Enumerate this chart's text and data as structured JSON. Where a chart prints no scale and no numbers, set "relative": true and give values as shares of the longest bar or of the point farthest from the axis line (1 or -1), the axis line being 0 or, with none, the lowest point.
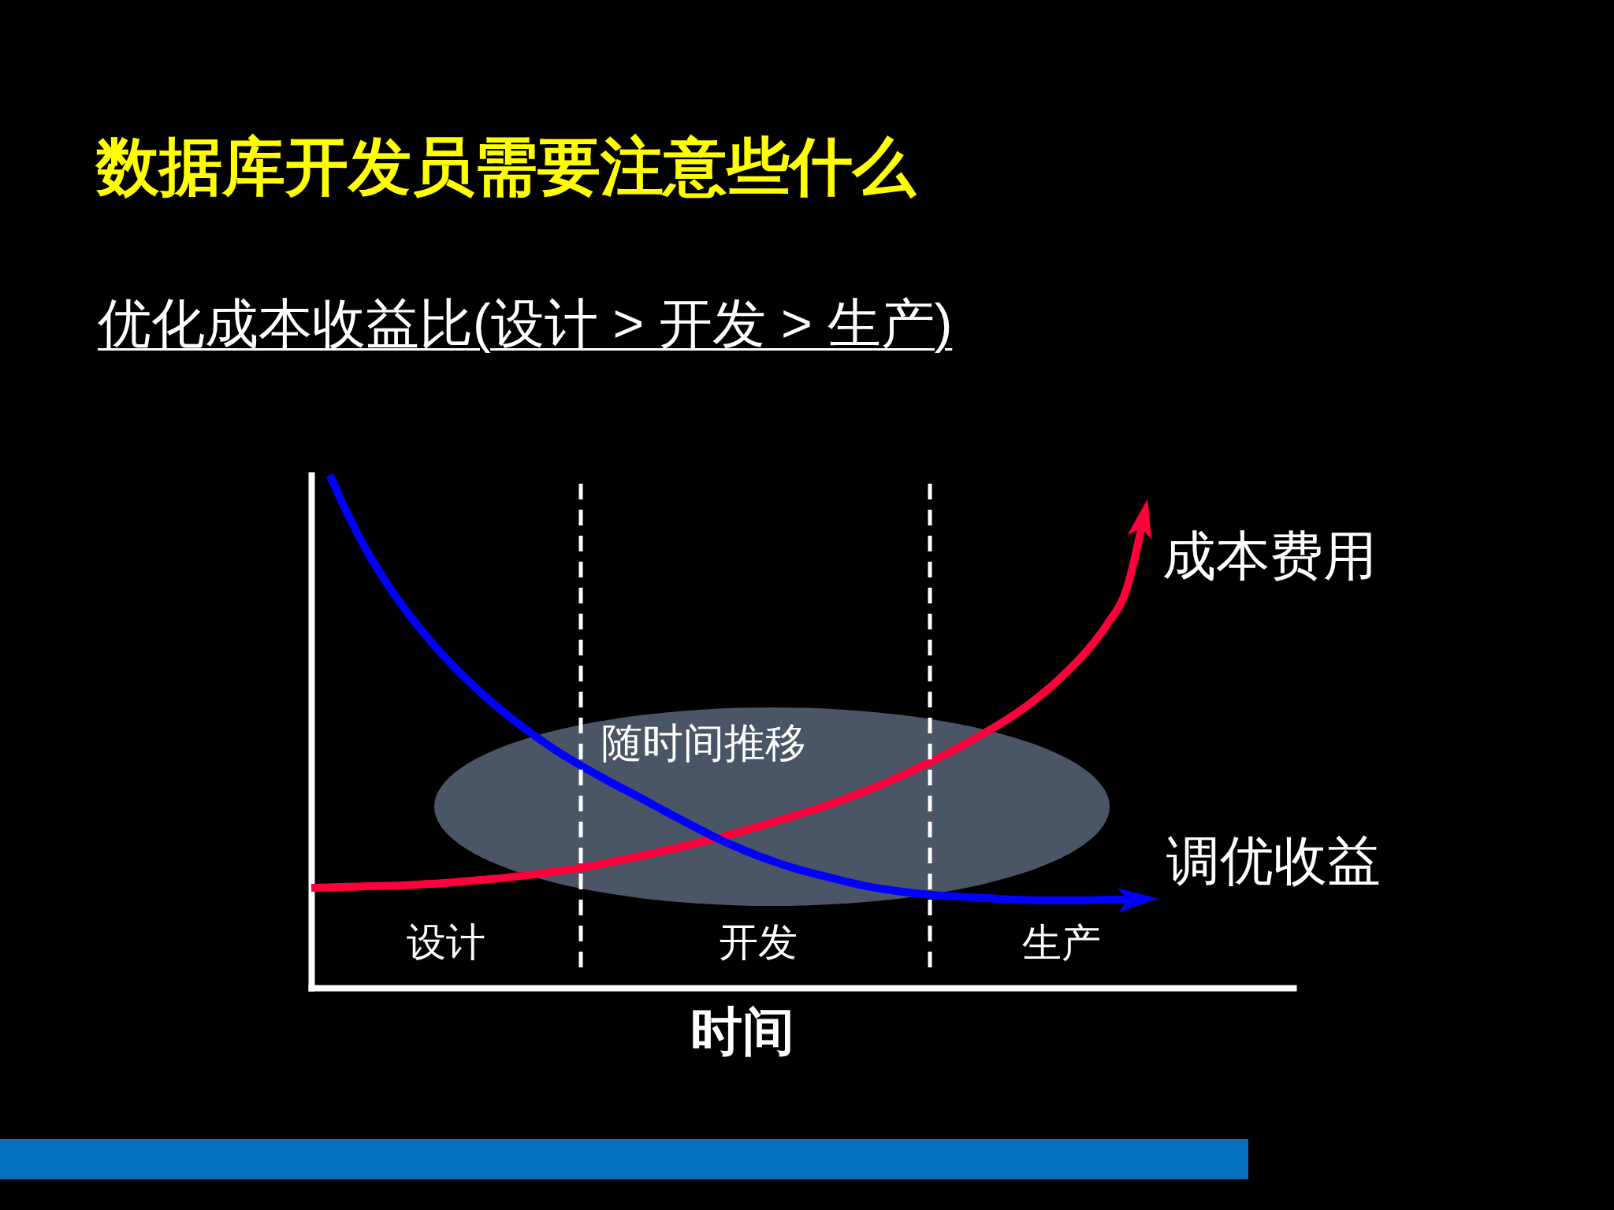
{
  "chart_data": {
    "type": "line",
    "title": "数据库开发员需要注意些什么",
    "subtitle": "优化成本收益比(设计 > 开发 > 生产)",
    "xlabel": "时间",
    "relative": true,
    "categories": [
      null,
      null,
      null,
      null,
      null,
      null,
      null,
      null,
      null,
      null,
      null,
      null,
      null,
      null,
      null,
      null,
      null,
      null,
      null,
      null,
      null,
      null,
      null,
      null,
      null,
      null,
      null,
      null,
      null,
      null,
      null,
      null,
      null,
      null,
      null,
      null,
      null,
      null,
      null,
      null,
      null,
      null,
      null,
      null,
      null,
      null,
      null,
      null,
      null,
      null,
      null,
      null,
      null,
      null
    ],
    "series": [
      {
        "name": "成本费用",
        "color": "#ff003c",
        "values": [
          0.195,
          0.196,
          0.197,
          0.198,
          0.199,
          0.2,
          0.202,
          0.204,
          0.207,
          0.21,
          0.213,
          0.217,
          0.221,
          0.226,
          0.231,
          0.237,
          0.244,
          0.251,
          0.259,
          0.267,
          0.275,
          0.284,
          0.293,
          0.303,
          0.313,
          0.324,
          0.335,
          0.346,
          0.358,
          0.371,
          0.385,
          0.4,
          0.416,
          0.433,
          0.451,
          0.47,
          0.49,
          0.511,
          0.534,
          0.56,
          0.59,
          0.624,
          0.663,
          0.711,
          0.777,
          0.93,
          null,
          null,
          null,
          null,
          null,
          null,
          null,
          null
        ]
      },
      {
        "name": "调优收益",
        "color": "#0000ff",
        "values": [
          null,
          1.0,
          0.921,
          0.852,
          0.793,
          0.741,
          0.695,
          0.653,
          0.615,
          0.581,
          0.549,
          0.52,
          0.493,
          0.468,
          0.445,
          0.424,
          0.404,
          0.385,
          0.366,
          0.346,
          0.327,
          0.308,
          0.29,
          0.274,
          0.259,
          0.246,
          0.234,
          0.224,
          0.215,
          0.206,
          0.198,
          0.192,
          0.187,
          0.183,
          0.18,
          0.178,
          0.176,
          0.174,
          0.172,
          0.171,
          0.171,
          0.171,
          0.171,
          0.172,
          0.172,
          0.173,
          null,
          null,
          null,
          null,
          null,
          null,
          null,
          null
        ]
      }
    ],
    "annotations": [
      "设计",
      "开发",
      "生产",
      "随时间推移"
    ]
  }
}
